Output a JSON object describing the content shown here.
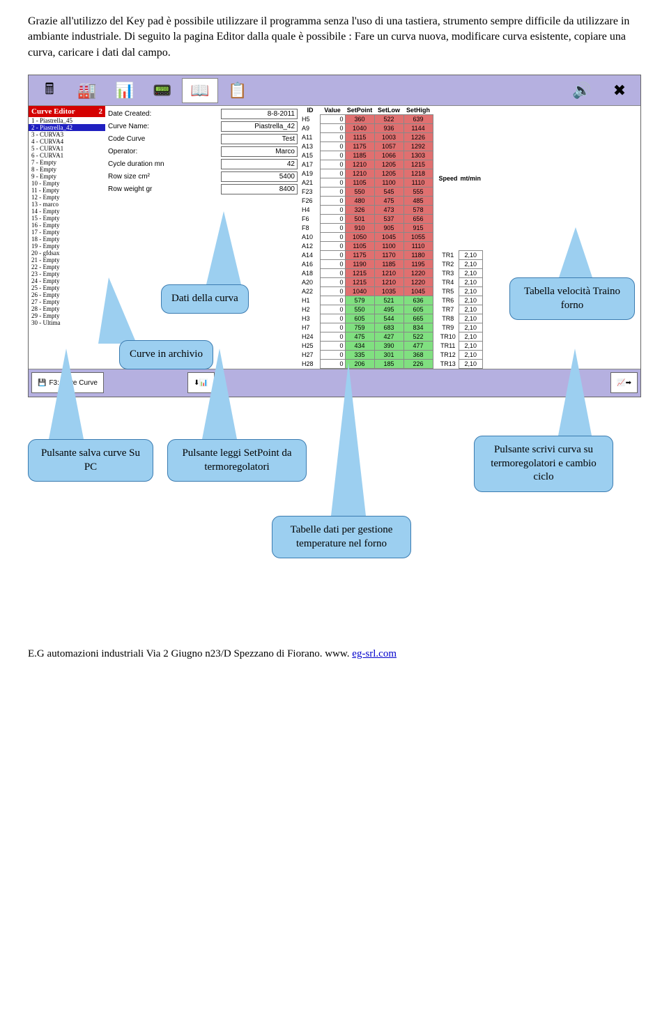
{
  "intro": {
    "p1": "Grazie all'utilizzo del Key pad  è possibile utilizzare il programma senza l'uso di una tastiera, strumento sempre difficile da utilizzare in ambiante industriale. Di seguito la pagina Editor dalla quale è possibile : Fare un curva nuova, modificare curva esistente, copiare una curva, caricare i dati dal campo."
  },
  "curve_editor": {
    "title": "Curve Editor",
    "selected": "2",
    "items": [
      "1 -  Piastrella_45",
      "2 -  Piastrella_42",
      "3 -  CURVA3",
      "4 -  CURVA4",
      "5 -  CURVA1",
      "6 -  CURVA1",
      "7 -  Empty",
      "8 -  Empty",
      "9 -  Empty",
      "10 -  Empty",
      "11 -  Empty",
      "12 -  Empty",
      "13 -  marco",
      "14 -  Empty",
      "15 -  Empty",
      "16 -  Empty",
      "17 -  Empty",
      "18 -  Empty",
      "19 -  Empty",
      "20 -  gfdsax",
      "21 -  Empty",
      "22 -  Empty",
      "23 -  Empty",
      "24 -  Empty",
      "25 -  Empty",
      "26 -  Empty",
      "27 -  Empty",
      "28 -  Empty",
      "29 -  Empty",
      "30 -  Ultima"
    ]
  },
  "form": {
    "dateCreated": {
      "label": "Date Created:",
      "value": "8-8-2011"
    },
    "curveName": {
      "label": "Curve Name:",
      "value": "Piastrella_42"
    },
    "codeCurve": {
      "label": "Code Curve",
      "value": "Test"
    },
    "operator": {
      "label": "Operator:",
      "value": "Marco"
    },
    "cycleDuration": {
      "label": "Cycle duration mn",
      "value": "42"
    },
    "rowSize": {
      "label": "Row size cm²",
      "value": "5400"
    },
    "rowWeight": {
      "label": "Row weight gr",
      "value": "8400"
    }
  },
  "data_table": {
    "headers": [
      "ID",
      "Value",
      "SetPoint",
      "SetLow",
      "SetHigh"
    ],
    "rows": [
      {
        "id": "H5",
        "v": "0",
        "sp": "360",
        "sl": "522",
        "sh": "639"
      },
      {
        "id": "A9",
        "v": "0",
        "sp": "1040",
        "sl": "936",
        "sh": "1144"
      },
      {
        "id": "A11",
        "v": "0",
        "sp": "1115",
        "sl": "1003",
        "sh": "1226"
      },
      {
        "id": "A13",
        "v": "0",
        "sp": "1175",
        "sl": "1057",
        "sh": "1292"
      },
      {
        "id": "A15",
        "v": "0",
        "sp": "1185",
        "sl": "1066",
        "sh": "1303"
      },
      {
        "id": "A17",
        "v": "0",
        "sp": "1210",
        "sl": "1205",
        "sh": "1215"
      },
      {
        "id": "A19",
        "v": "0",
        "sp": "1210",
        "sl": "1205",
        "sh": "1218"
      },
      {
        "id": "A21",
        "v": "0",
        "sp": "1105",
        "sl": "1100",
        "sh": "1110"
      },
      {
        "id": "F23",
        "v": "0",
        "sp": "550",
        "sl": "545",
        "sh": "555"
      },
      {
        "id": "F26",
        "v": "0",
        "sp": "480",
        "sl": "475",
        "sh": "485"
      },
      {
        "id": "H4",
        "v": "0",
        "sp": "326",
        "sl": "473",
        "sh": "578"
      },
      {
        "id": "F6",
        "v": "0",
        "sp": "501",
        "sl": "537",
        "sh": "656"
      },
      {
        "id": "F8",
        "v": "0",
        "sp": "910",
        "sl": "905",
        "sh": "915"
      },
      {
        "id": "A10",
        "v": "0",
        "sp": "1050",
        "sl": "1045",
        "sh": "1055"
      },
      {
        "id": "A12",
        "v": "0",
        "sp": "1105",
        "sl": "1100",
        "sh": "1110"
      },
      {
        "id": "A14",
        "v": "0",
        "sp": "1175",
        "sl": "1170",
        "sh": "1180"
      },
      {
        "id": "A16",
        "v": "0",
        "sp": "1190",
        "sl": "1185",
        "sh": "1195"
      },
      {
        "id": "A18",
        "v": "0",
        "sp": "1215",
        "sl": "1210",
        "sh": "1220"
      },
      {
        "id": "A20",
        "v": "0",
        "sp": "1215",
        "sl": "1210",
        "sh": "1220"
      },
      {
        "id": "A22",
        "v": "0",
        "sp": "1040",
        "sl": "1035",
        "sh": "1045"
      },
      {
        "id": "H1",
        "v": "0",
        "sp": "579",
        "sl": "521",
        "sh": "636",
        "g": true
      },
      {
        "id": "H2",
        "v": "0",
        "sp": "550",
        "sl": "495",
        "sh": "605",
        "g": true
      },
      {
        "id": "H3",
        "v": "0",
        "sp": "605",
        "sl": "544",
        "sh": "665",
        "g": true
      },
      {
        "id": "H7",
        "v": "0",
        "sp": "759",
        "sl": "683",
        "sh": "834",
        "g": true
      },
      {
        "id": "H24",
        "v": "0",
        "sp": "475",
        "sl": "427",
        "sh": "522",
        "g": true
      },
      {
        "id": "H25",
        "v": "0",
        "sp": "434",
        "sl": "390",
        "sh": "477",
        "g": true
      },
      {
        "id": "H27",
        "v": "0",
        "sp": "335",
        "sl": "301",
        "sh": "368",
        "g": true
      },
      {
        "id": "H28",
        "v": "0",
        "sp": "206",
        "sl": "185",
        "sh": "226",
        "g": true
      }
    ]
  },
  "speed_table": {
    "head1": "Speed",
    "head2": "mt/min",
    "rows": [
      {
        "tr": "TR1",
        "v": "2,10"
      },
      {
        "tr": "TR2",
        "v": "2,10"
      },
      {
        "tr": "TR3",
        "v": "2,10"
      },
      {
        "tr": "TR4",
        "v": "2,10"
      },
      {
        "tr": "TR5",
        "v": "2,10"
      },
      {
        "tr": "TR6",
        "v": "2,10"
      },
      {
        "tr": "TR7",
        "v": "2,10"
      },
      {
        "tr": "TR8",
        "v": "2,10"
      },
      {
        "tr": "TR9",
        "v": "2,10"
      },
      {
        "tr": "TR10",
        "v": "2,10"
      },
      {
        "tr": "TR11",
        "v": "2,10"
      },
      {
        "tr": "TR12",
        "v": "2,10"
      },
      {
        "tr": "TR13",
        "v": "2,10"
      }
    ]
  },
  "bottom": {
    "save": "F3: Save Curve"
  },
  "callouts": {
    "dati_curva": "Dati della curva",
    "tabella_velocita": "Tabella velocità Traino forno",
    "curve_archivio": "Curve in archivio",
    "salva_curve": "Pulsante salva curve Su PC",
    "leggi_setpoint": "Pulsante leggi SetPoint da termoregolatori",
    "scrivi_curva": "Pulsante scrivi curva su termoregolatori e cambio ciclo",
    "tabelle_dati": "Tabelle dati per gestione temperature nel forno"
  },
  "footer": {
    "text": "E.G automazioni industriali Via 2 Giugno n23/D Spezzano di Fiorano. www. ",
    "link": "eg-srl.com"
  }
}
